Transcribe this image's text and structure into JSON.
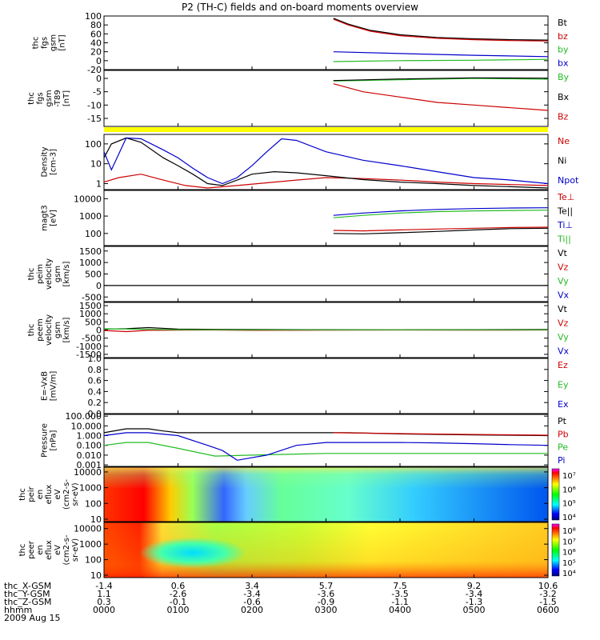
{
  "title": "P2 (TH-C) fields and on-board moments overview",
  "date_label": "2009 Aug 15",
  "time": {
    "x_labels": [
      "0000",
      "0100",
      "0200",
      "0300",
      "0400",
      "0500",
      "0600"
    ],
    "rows": [
      {
        "label": "thc_X-GSM",
        "values": [
          "-1.4",
          "0.6",
          "3.4",
          "5.7",
          "7.5",
          "9.2",
          "10.6"
        ]
      },
      {
        "label": "thc_Y-GSM",
        "values": [
          "1.1",
          "-2.6",
          "-3.4",
          "-3.6",
          "-3.5",
          "-3.4",
          "-3.2"
        ]
      },
      {
        "label": "thc_Z-GSM",
        "values": [
          "0.3",
          "-0.1",
          "-0.6",
          "-0.9",
          "-1.1",
          "-1.3",
          "-1.5"
        ]
      },
      {
        "label": "hhmm",
        "values": []
      }
    ]
  },
  "panels": [
    {
      "id": "fgs",
      "ylabel": [
        "thc",
        "fgs",
        "gsm",
        "[nT]"
      ],
      "ticks": [
        "100",
        "80",
        "60",
        "40",
        "20",
        "0",
        "-20"
      ],
      "tick_vals": [
        100,
        80,
        60,
        40,
        20,
        0,
        -20
      ],
      "ylim": [
        -20,
        100
      ],
      "scale": "linear",
      "legend": [
        {
          "text": "Bt",
          "color": "#000000"
        },
        {
          "text": "bz",
          "color": "#cc0000"
        },
        {
          "text": "by",
          "color": "#22bb22"
        },
        {
          "text": "bx",
          "color": "#0000cc"
        }
      ]
    },
    {
      "id": "fgsdip",
      "ylabel": [
        "thc",
        "fgs",
        "gsm",
        "-T89",
        "[nT]"
      ],
      "ticks": [
        "0",
        "-5",
        "-10",
        "-15"
      ],
      "tick_vals": [
        0,
        -5,
        -10,
        -15
      ],
      "ylim": [
        -18,
        3
      ],
      "scale": "linear",
      "legend": [
        {
          "text": "By",
          "color": "#22bb22"
        },
        {
          "text": "Bx",
          "color": "#000000"
        },
        {
          "text": "Bz",
          "color": "#cc0000"
        }
      ]
    },
    {
      "id": "density",
      "ylabel": [
        "Density",
        "[cm-3]"
      ],
      "ticks": [
        "100",
        "10",
        "1"
      ],
      "tick_vals": [
        100,
        10,
        1
      ],
      "ylim": [
        0.5,
        300
      ],
      "scale": "log",
      "legend": [
        {
          "text": "Ne",
          "color": "#cc0000"
        },
        {
          "text": "Ni",
          "color": "#000000"
        },
        {
          "text": "Npot",
          "color": "#0000cc"
        }
      ]
    },
    {
      "id": "temp",
      "ylabel": [
        "magt3",
        "[eV]"
      ],
      "ticks": [
        "10000",
        "1000",
        "100"
      ],
      "tick_vals": [
        10000,
        1000,
        100
      ],
      "ylim": [
        20,
        30000
      ],
      "scale": "log",
      "legend": [
        {
          "text": "Te⊥",
          "color": "#cc0000"
        },
        {
          "text": "Te||",
          "color": "#000000"
        },
        {
          "text": "Ti⊥",
          "color": "#0000cc"
        },
        {
          "text": "Ti||",
          "color": "#22bb22"
        }
      ]
    },
    {
      "id": "peimvel",
      "ylabel": [
        "thc",
        "peim",
        "velocity",
        "gsm",
        "[km/s]"
      ],
      "ticks": [
        "1500",
        "1000",
        "500",
        "0",
        "-500"
      ],
      "tick_vals": [
        1500,
        1000,
        500,
        0,
        -500
      ],
      "ylim": [
        -700,
        1700
      ],
      "scale": "linear",
      "legend": [
        {
          "text": "Vt",
          "color": "#000000"
        },
        {
          "text": "Vz",
          "color": "#cc0000"
        },
        {
          "text": "Vy",
          "color": "#22bb22"
        },
        {
          "text": "Vx",
          "color": "#0000cc"
        }
      ]
    },
    {
      "id": "peemvel",
      "ylabel": [
        "thc",
        "peem",
        "velocity",
        "gsm",
        "[km/s]"
      ],
      "ticks": [
        "1500",
        "1000",
        "500",
        "0",
        "-500",
        "-1000",
        "-1500"
      ],
      "tick_vals": [
        1500,
        1000,
        500,
        0,
        -500,
        -1000,
        -1500
      ],
      "ylim": [
        -1700,
        1700
      ],
      "scale": "linear",
      "legend": [
        {
          "text": "Vt",
          "color": "#000000"
        },
        {
          "text": "Vz",
          "color": "#cc0000"
        },
        {
          "text": "Vy",
          "color": "#22bb22"
        },
        {
          "text": "Vx",
          "color": "#0000cc"
        }
      ]
    },
    {
      "id": "efield",
      "ylabel": [
        "E=-VxB",
        "[mV/m]"
      ],
      "ticks": [
        "1.0",
        "0.8",
        "0.6",
        "0.4",
        "0.2",
        "0.0"
      ],
      "tick_vals": [
        1.0,
        0.8,
        0.6,
        0.4,
        0.2,
        0.0
      ],
      "ylim": [
        0,
        1
      ],
      "scale": "linear",
      "legend": [
        {
          "text": "Ez",
          "color": "#cc0000"
        },
        {
          "text": "Ey",
          "color": "#22bb22"
        },
        {
          "text": "Ex",
          "color": "#0000cc"
        }
      ]
    },
    {
      "id": "pressure",
      "ylabel": [
        "Pressure",
        "[nPa]"
      ],
      "ticks": [
        "100.000",
        "10.000",
        "1.000",
        "0.100",
        "0.010",
        "0.001"
      ],
      "tick_vals": [
        100,
        10,
        1,
        0.1,
        0.01,
        0.001
      ],
      "ylim": [
        0.0007,
        150
      ],
      "scale": "log",
      "legend": [
        {
          "text": "Pt",
          "color": "#000000"
        },
        {
          "text": "Pb",
          "color": "#cc0000"
        },
        {
          "text": "Pe",
          "color": "#22bb22"
        },
        {
          "text": "Pi",
          "color": "#0000cc"
        }
      ]
    },
    {
      "id": "peirspec",
      "ylabel": [
        "thc",
        "peir",
        "en",
        "eflux",
        "eV",
        "(cm2-s-",
        "sr-eV)"
      ],
      "ticks": [
        "10000",
        "1000",
        "100",
        "10"
      ],
      "tick_vals": [
        10000,
        1000,
        100,
        10
      ],
      "ylim": [
        7,
        20000
      ],
      "scale": "log",
      "colorbar": [
        "10⁷",
        "10⁶",
        "10⁵",
        "10⁴"
      ]
    },
    {
      "id": "peerspec",
      "ylabel": [
        "thc",
        "peer",
        "en",
        "eflux",
        "eV",
        "(cm2-s-",
        "sr-eV)"
      ],
      "ticks": [
        "10000",
        "1000",
        "100",
        "10"
      ],
      "tick_vals": [
        10000,
        1000,
        100,
        10
      ],
      "ylim": [
        7,
        25000
      ],
      "scale": "log",
      "colorbar": [
        "10⁸",
        "10⁷",
        "10⁶",
        "10⁵",
        "10⁴"
      ]
    }
  ],
  "chart_data": {
    "type": "line",
    "x_hours": [
      0,
      0.25,
      0.5,
      0.75,
      1,
      1.25,
      1.5,
      1.75,
      2,
      2.25,
      2.5,
      2.75,
      3,
      3.25,
      3.5,
      3.75,
      4,
      4.25,
      4.5,
      4.75,
      5,
      5.25,
      5.5,
      5.75,
      6
    ],
    "series": [
      {
        "name": "Bt",
        "panel": "fgs",
        "color": "#000000",
        "x": [
          3.1,
          3.3,
          3.6,
          4,
          4.5,
          5,
          5.5,
          6
        ],
        "y": [
          95,
          82,
          68,
          58,
          52,
          49,
          47,
          46
        ]
      },
      {
        "name": "bz",
        "panel": "fgs",
        "color": "#cc0000",
        "x": [
          3.1,
          3.3,
          3.6,
          4,
          4.5,
          5,
          5.5,
          6
        ],
        "y": [
          93,
          80,
          66,
          56,
          50,
          47,
          45,
          44
        ]
      },
      {
        "name": "by",
        "panel": "fgs",
        "color": "#22bb22",
        "x": [
          3.1,
          4,
          5,
          6
        ],
        "y": [
          -2,
          0,
          1,
          3
        ]
      },
      {
        "name": "bx",
        "panel": "fgs",
        "color": "#0000cc",
        "x": [
          3.1,
          4,
          5,
          6
        ],
        "y": [
          20,
          16,
          12,
          9
        ]
      },
      {
        "name": "By",
        "panel": "fgsdip",
        "color": "#22bb22",
        "x": [
          3.1,
          4,
          5,
          6
        ],
        "y": [
          -1,
          -0.5,
          0,
          -0.3
        ]
      },
      {
        "name": "Bx",
        "panel": "fgsdip",
        "color": "#000000",
        "x": [
          3.1,
          4,
          5,
          6
        ],
        "y": [
          -0.8,
          -0.2,
          0.2,
          0.1
        ]
      },
      {
        "name": "Bz",
        "panel": "fgsdip",
        "color": "#cc0000",
        "x": [
          3.1,
          3.5,
          4,
          4.5,
          5,
          5.5,
          6
        ],
        "y": [
          -2,
          -5,
          -7,
          -9,
          -10,
          -11,
          -12
        ]
      },
      {
        "name": "Ne",
        "panel": "density",
        "color": "#cc0000",
        "x": [
          0,
          0.2,
          0.5,
          0.8,
          1.1,
          1.4,
          1.8,
          2.2,
          2.6,
          3,
          3.5,
          4,
          4.5,
          5,
          5.5,
          6
        ],
        "y": [
          1.2,
          2,
          3,
          1.5,
          0.8,
          0.6,
          0.8,
          1.1,
          1.5,
          2,
          1.8,
          1.5,
          1.2,
          1,
          0.9,
          0.8
        ]
      },
      {
        "name": "Ni",
        "panel": "density",
        "color": "#000000",
        "x": [
          0,
          0.1,
          0.3,
          0.5,
          0.8,
          1,
          1.2,
          1.4,
          1.6,
          1.8,
          2,
          2.3,
          2.6,
          3,
          3.5,
          4,
          4.5,
          5,
          5.5,
          6
        ],
        "y": [
          20,
          100,
          200,
          120,
          20,
          8,
          3,
          1,
          0.8,
          1.5,
          3,
          4,
          3.5,
          2.5,
          1.6,
          1.2,
          1,
          0.8,
          0.7,
          0.6
        ]
      },
      {
        "name": "Npot",
        "panel": "density",
        "color": "#0000cc",
        "x": [
          0,
          0.1,
          0.3,
          0.5,
          0.8,
          1,
          1.2,
          1.4,
          1.6,
          1.8,
          2,
          2.2,
          2.4,
          2.6,
          3,
          3.5,
          4,
          4.5,
          5,
          5.5,
          6
        ],
        "y": [
          40,
          5,
          200,
          180,
          50,
          20,
          6,
          2,
          1,
          2,
          8,
          40,
          180,
          150,
          40,
          15,
          8,
          4,
          2,
          1.5,
          1
        ]
      },
      {
        "name": "Te⊥",
        "panel": "temp",
        "color": "#cc0000",
        "x": [
          3.1,
          3.5,
          4,
          4.5,
          5,
          5.5,
          6
        ],
        "y": [
          150,
          140,
          160,
          180,
          200,
          220,
          230
        ]
      },
      {
        "name": "Te||",
        "panel": "temp",
        "color": "#000000",
        "x": [
          3.1,
          3.5,
          4,
          4.5,
          5,
          5.5,
          6
        ],
        "y": [
          100,
          95,
          110,
          130,
          160,
          190,
          200
        ]
      },
      {
        "name": "Ti⊥",
        "panel": "temp",
        "color": "#0000cc",
        "x": [
          3.1,
          3.5,
          4,
          4.5,
          5,
          5.5,
          6
        ],
        "y": [
          1100,
          1500,
          2000,
          2400,
          2700,
          2900,
          3000
        ]
      },
      {
        "name": "Ti||",
        "panel": "temp",
        "color": "#22bb22",
        "x": [
          3.1,
          3.5,
          4,
          4.5,
          5,
          5.5,
          6
        ],
        "y": [
          800,
          1100,
          1500,
          1800,
          2000,
          2100,
          2200
        ]
      },
      {
        "name": "Vt",
        "panel": "peimvel",
        "color": "#000000",
        "x": [
          0,
          6
        ],
        "y": [
          0,
          0
        ]
      },
      {
        "name": "Vt",
        "panel": "peemvel",
        "color": "#000000",
        "x": [
          0,
          0.3,
          0.6,
          1,
          1.5,
          2,
          3,
          4,
          5,
          6
        ],
        "y": [
          60,
          80,
          150,
          60,
          40,
          30,
          20,
          10,
          20,
          30
        ]
      },
      {
        "name": "Vz",
        "panel": "peemvel",
        "color": "#cc0000",
        "x": [
          0,
          0.3,
          0.6,
          1,
          1.5,
          2,
          3,
          4,
          5,
          6
        ],
        "y": [
          -30,
          -100,
          -20,
          -10,
          0,
          -20,
          -10,
          0,
          -10,
          0
        ]
      },
      {
        "name": "Vy",
        "panel": "peemvel",
        "color": "#22bb22",
        "x": [
          0,
          0.3,
          0.6,
          1,
          2,
          3,
          4,
          5,
          6
        ],
        "y": [
          80,
          60,
          40,
          20,
          10,
          10,
          10,
          10,
          10
        ]
      },
      {
        "name": "Pt",
        "panel": "pressure",
        "color": "#000000",
        "x": [
          0,
          0.3,
          0.6,
          0.8,
          1,
          3.3,
          4,
          5,
          6
        ],
        "y": [
          2,
          5,
          5,
          3,
          2,
          2,
          1.5,
          1.2,
          1
        ]
      },
      {
        "name": "Pb",
        "panel": "pressure",
        "color": "#cc0000",
        "x": [
          3.1,
          4,
          5,
          6
        ],
        "y": [
          2,
          1.6,
          1.3,
          1.1
        ]
      },
      {
        "name": "Pe",
        "panel": "pressure",
        "color": "#22bb22",
        "x": [
          0,
          0.3,
          0.6,
          1,
          1.5,
          2,
          3,
          4,
          5,
          6
        ],
        "y": [
          0.1,
          0.2,
          0.2,
          0.05,
          0.008,
          0.01,
          0.015,
          0.015,
          0.015,
          0.015
        ]
      },
      {
        "name": "Pi",
        "panel": "pressure",
        "color": "#0000cc",
        "x": [
          0,
          0.3,
          0.6,
          1,
          1.4,
          1.6,
          1.8,
          2.2,
          2.6,
          3,
          3.5,
          4,
          4.5,
          5,
          5.5,
          6
        ],
        "y": [
          1,
          2,
          2,
          1,
          0.1,
          0.03,
          0.003,
          0.01,
          0.1,
          0.2,
          0.2,
          0.2,
          0.18,
          0.15,
          0.12,
          0.1
        ]
      }
    ]
  }
}
